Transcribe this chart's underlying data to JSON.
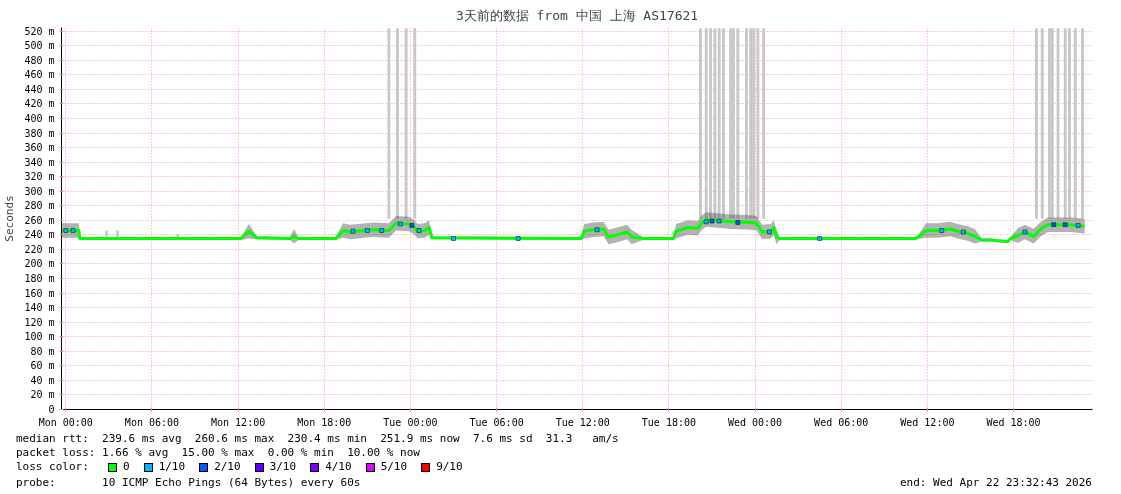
{
  "chart_data": {
    "type": "line",
    "title": "3天前的数据 from 中国 上海 AS17621",
    "ylabel": "Seconds",
    "xlim": [
      "2026-04-19T23:42",
      "2026-04-22T23:30"
    ],
    "xticks": [
      {
        "value": "2026-04-20T00:00",
        "label": "Mon 00:00"
      },
      {
        "value": "2026-04-20T06:00",
        "label": "Mon 06:00"
      },
      {
        "value": "2026-04-20T12:00",
        "label": "Mon 12:00"
      },
      {
        "value": "2026-04-20T18:00",
        "label": "Mon 18:00"
      },
      {
        "value": "2026-04-21T00:00",
        "label": "Tue 00:00"
      },
      {
        "value": "2026-04-21T06:00",
        "label": "Tue 06:00"
      },
      {
        "value": "2026-04-21T12:00",
        "label": "Tue 12:00"
      },
      {
        "value": "2026-04-21T18:00",
        "label": "Tue 18:00"
      },
      {
        "value": "2026-04-22T00:00",
        "label": "Wed 00:00"
      },
      {
        "value": "2026-04-22T06:00",
        "label": "Wed 06:00"
      },
      {
        "value": "2026-04-22T12:00",
        "label": "Wed 12:00"
      },
      {
        "value": "2026-04-22T18:00",
        "label": "Wed 18:00"
      }
    ],
    "ylim": [
      0,
      525
    ],
    "yticks": [
      0,
      {
        "value": 20,
        "label": "20 m"
      },
      {
        "value": 40,
        "label": "40 m"
      },
      {
        "value": 60,
        "label": "60 m"
      },
      {
        "value": 80,
        "label": "80 m"
      },
      {
        "value": 100,
        "label": "100 m"
      },
      {
        "value": 120,
        "label": "120 m"
      },
      {
        "value": 140,
        "label": "140 m"
      },
      {
        "value": 160,
        "label": "160 m"
      },
      {
        "value": 180,
        "label": "180 m"
      },
      {
        "value": 200,
        "label": "200 m"
      },
      {
        "value": 220,
        "label": "220 m"
      },
      {
        "value": 240,
        "label": "240 m"
      },
      {
        "value": 260,
        "label": "260 m"
      },
      {
        "value": 280,
        "label": "280 m"
      },
      {
        "value": 300,
        "label": "300 m"
      },
      {
        "value": 320,
        "label": "320 m"
      },
      {
        "value": 340,
        "label": "340 m"
      },
      {
        "value": 360,
        "label": "360 m"
      },
      {
        "value": 380,
        "label": "380 m"
      },
      {
        "value": 400,
        "label": "400 m"
      },
      {
        "value": 420,
        "label": "420 m"
      },
      {
        "value": 440,
        "label": "440 m"
      },
      {
        "value": 460,
        "label": "460 m"
      },
      {
        "value": 480,
        "label": "480 m"
      },
      {
        "value": 500,
        "label": "500 m"
      },
      {
        "value": 520,
        "label": "520 m"
      }
    ],
    "grid": true,
    "legend": "bottom",
    "legend_title": "loss color:",
    "annotations": [
      "median rtt:  239.6 ms avg  260.6 ms max  230.4 ms min  251.9 ms now  7.6 ms sd  31.3   am/s",
      "packet loss: 1.66 % avg  15.00 % max  0.00 % min  10.00 % now",
      "probe:       10 ICMP Echo Pings (64 Bytes) every 60s",
      "end: Wed Apr 22 23:32:43 2026"
    ],
    "series": [
      {
        "type": "bar",
        "color": "#c8c8c8",
        "x": [
          "2026-04-20T02:51",
          "2026-04-20T03:36",
          "2026-04-20T07:48",
          "2026-04-20T22:30",
          "2026-04-20T23:06",
          "2026-04-20T23:42",
          "2026-04-21T00:18",
          "2026-04-21T20:12",
          "2026-04-21T20:36",
          "2026-04-21T20:54",
          "2026-04-21T21:12",
          "2026-04-21T21:30",
          "2026-04-21T21:48",
          "2026-04-21T22:18",
          "2026-04-21T22:30",
          "2026-04-21T22:48",
          "2026-04-21T23:24",
          "2026-04-21T23:42",
          "2026-04-21T23:54",
          "2026-04-22T00:12",
          "2026-04-22T00:36",
          "2026-04-22T19:36",
          "2026-04-22T20:00",
          "2026-04-22T20:30",
          "2026-04-22T20:42",
          "2026-04-22T21:06",
          "2026-04-22T21:36",
          "2026-04-22T21:54",
          "2026-04-22T22:18",
          "2026-04-22T22:48"
        ],
        "base": [
          236,
          236,
          236,
          262,
          262,
          262,
          262,
          262,
          262,
          262,
          262,
          262,
          262,
          262,
          262,
          262,
          262,
          262,
          262,
          262,
          262,
          262,
          262,
          262,
          262,
          262,
          262,
          262,
          262,
          262
        ],
        "values": [
          10,
          10,
          5,
          262,
          262,
          262,
          262,
          262,
          262,
          262,
          262,
          262,
          262,
          262,
          262,
          262,
          262,
          262,
          262,
          262,
          262,
          262,
          262,
          262,
          262,
          262,
          262,
          262,
          262,
          262
        ]
      },
      {
        "name": "0",
        "color": "#00ff00",
        "x": [
          "2026-04-19T23:43",
          "2026-04-20T00:54",
          "2026-04-20T00:59",
          "2026-04-20T12:12",
          "2026-04-20T12:45",
          "2026-04-20T13:18",
          "2026-04-20T15:36",
          "2026-04-20T15:54",
          "2026-04-20T16:12",
          "2026-04-20T18:48",
          "2026-04-20T19:18",
          "2026-04-20T19:48",
          "2026-04-20T20:21",
          "2026-04-20T21:24",
          "2026-04-20T22:30",
          "2026-04-20T23:00",
          "2026-04-20T23:54",
          "2026-04-21T00:18",
          "2026-04-21T00:30",
          "2026-04-21T01:00",
          "2026-04-21T01:18",
          "2026-04-21T01:30",
          "2026-04-21T11:54",
          "2026-04-21T12:06",
          "2026-04-21T12:45",
          "2026-04-21T13:27",
          "2026-04-21T13:48",
          "2026-04-21T14:24",
          "2026-04-21T15:06",
          "2026-04-21T15:24",
          "2026-04-21T16:12",
          "2026-04-21T18:18",
          "2026-04-21T18:30",
          "2026-04-21T19:18",
          "2026-04-21T20:00",
          "2026-04-21T20:18",
          "2026-04-21T20:36",
          "2026-04-21T22:18",
          "2026-04-21T23:42",
          "2026-04-22T00:06",
          "2026-04-22T00:30",
          "2026-04-22T01:06",
          "2026-04-22T01:18",
          "2026-04-22T01:30",
          "2026-04-22T01:42",
          "2026-04-22T11:06",
          "2026-04-22T11:18",
          "2026-04-22T11:54",
          "2026-04-22T12:42",
          "2026-04-22T13:36",
          "2026-04-22T14:06",
          "2026-04-22T14:48",
          "2026-04-22T15:18",
          "2026-04-22T15:48",
          "2026-04-22T16:24",
          "2026-04-22T16:54",
          "2026-04-22T17:36",
          "2026-04-22T17:48",
          "2026-04-22T18:18",
          "2026-04-22T18:48",
          "2026-04-22T19:24",
          "2026-04-22T19:54",
          "2026-04-22T20:24",
          "2026-04-22T22:00",
          "2026-04-22T22:57"
        ],
        "values": [
          246,
          246,
          235,
          235,
          245,
          236,
          235,
          238,
          235,
          235,
          246,
          244,
          245,
          247,
          246,
          256,
          255,
          250,
          245,
          246,
          250,
          236,
          235,
          245,
          247,
          248,
          237,
          240,
          244,
          237,
          235,
          235,
          245,
          250,
          249,
          257,
          261,
          258,
          257,
          256,
          244,
          245,
          250,
          237,
          235,
          235,
          236,
          246,
          246,
          248,
          245,
          242,
          238,
          233,
          233,
          232,
          231,
          235,
          239,
          244,
          238,
          248,
          254,
          254,
          252
        ],
        "lower": [
          236,
          236,
          233,
          233,
          235,
          234,
          233,
          228,
          233,
          233,
          236,
          234,
          235,
          237,
          236,
          246,
          245,
          240,
          235,
          236,
          240,
          234,
          233,
          235,
          237,
          238,
          227,
          230,
          234,
          227,
          233,
          233,
          235,
          240,
          239,
          247,
          251,
          248,
          247,
          246,
          234,
          235,
          240,
          227,
          233,
          233,
          234,
          236,
          236,
          238,
          235,
          232,
          228,
          231,
          231,
          230,
          229,
          233,
          229,
          234,
          228,
          238,
          244,
          244,
          242
        ],
        "upper": [
          256,
          256,
          237,
          237,
          255,
          238,
          237,
          248,
          237,
          237,
          256,
          254,
          255,
          257,
          256,
          266,
          265,
          260,
          255,
          256,
          260,
          238,
          237,
          255,
          257,
          258,
          247,
          250,
          254,
          247,
          237,
          237,
          255,
          260,
          259,
          267,
          271,
          268,
          267,
          266,
          254,
          255,
          260,
          247,
          237,
          237,
          238,
          256,
          256,
          258,
          255,
          252,
          248,
          235,
          235,
          234,
          233,
          237,
          249,
          254,
          248,
          258,
          264,
          264,
          262
        ]
      },
      {
        "type": "scatter",
        "name": "1/10",
        "color": "#00b8ff",
        "marker": "square",
        "x": [
          "2026-04-20T00:00",
          "2026-04-20T00:30",
          "2026-04-20T20:00",
          "2026-04-20T21:00",
          "2026-04-20T22:00",
          "2026-04-20T23:18",
          "2026-04-21T00:36",
          "2026-04-21T03:00",
          "2026-04-21T07:30",
          "2026-04-21T13:00",
          "2026-04-21T20:36",
          "2026-04-21T21:30",
          "2026-04-22T01:00",
          "2026-04-22T04:30",
          "2026-04-22T13:00",
          "2026-04-22T14:30",
          "2026-04-22T18:48",
          "2026-04-22T22:30"
        ],
        "values": [
          246,
          246,
          245,
          246,
          246,
          255,
          246,
          235,
          235,
          247,
          258,
          259,
          244,
          235,
          246,
          244,
          244,
          253
        ]
      },
      {
        "type": "scatter",
        "name": "2/10",
        "color": "#0059ff",
        "marker": "square",
        "x": [
          "2026-04-21T00:06",
          "2026-04-21T21:00",
          "2026-04-21T22:48",
          "2026-04-22T20:48",
          "2026-04-22T21:36"
        ],
        "values": [
          253,
          259,
          257,
          254,
          254
        ]
      },
      {
        "type": "scatter",
        "name": "3/10",
        "color": "#5e00ff",
        "marker": "square"
      },
      {
        "type": "scatter",
        "name": "4/10",
        "color": "#7e00ff",
        "marker": "square"
      },
      {
        "type": "scatter",
        "name": "5/10",
        "color": "#dd00ff",
        "marker": "square"
      },
      {
        "type": "scatter",
        "name": "9/10",
        "color": "#ff0000",
        "marker": "square"
      }
    ]
  }
}
